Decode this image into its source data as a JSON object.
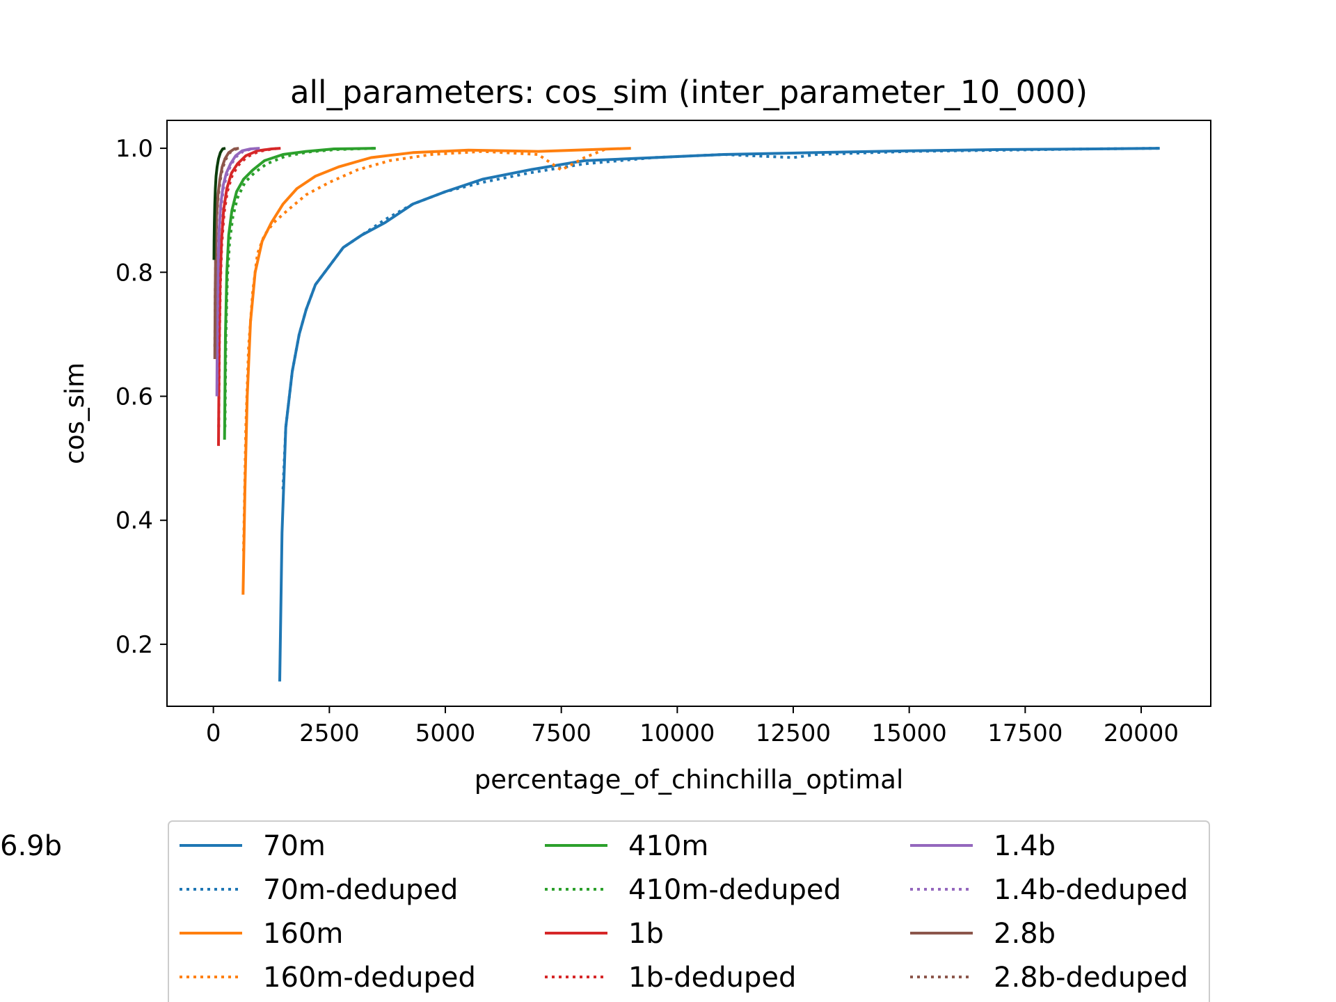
{
  "chart_data": {
    "type": "line",
    "title": "all_parameters: cos_sim (inter_parameter_10_000)",
    "xlabel": "percentage_of_chinchilla_optimal",
    "ylabel": "cos_sim",
    "xlim": [
      -1000,
      21500
    ],
    "ylim": [
      0.1,
      1.045
    ],
    "xticks": [
      0,
      2500,
      5000,
      7500,
      10000,
      12500,
      15000,
      17500,
      20000
    ],
    "yticks": [
      0.2,
      0.4,
      0.6,
      0.8,
      1.0
    ],
    "grid": false,
    "legend_position": "bottom-outside",
    "series": [
      {
        "name": "70m",
        "color": "#1f77b4",
        "style": "solid",
        "x": [
          1430,
          1480,
          1560,
          1700,
          1850,
          2000,
          2200,
          2500,
          2800,
          3200,
          3700,
          4300,
          5000,
          5800,
          6800,
          8000,
          9500,
          11000,
          13000,
          15000,
          17000,
          19000,
          20400
        ],
        "y": [
          0.14,
          0.38,
          0.55,
          0.64,
          0.7,
          0.74,
          0.78,
          0.81,
          0.84,
          0.86,
          0.88,
          0.91,
          0.93,
          0.95,
          0.965,
          0.98,
          0.985,
          0.99,
          0.993,
          0.996,
          0.998,
          0.999,
          1.0
        ]
      },
      {
        "name": "70m-deduped",
        "color": "#1f77b4",
        "style": "dotted",
        "x": [
          1500,
          1560,
          1700,
          1850,
          2000,
          2200,
          2500,
          2800,
          3200,
          3700,
          4300,
          5000,
          5800,
          6800,
          8000,
          9500,
          11000,
          12500,
          13000,
          15000,
          17000,
          19000,
          20400
        ],
        "y": [
          0.45,
          0.55,
          0.64,
          0.7,
          0.74,
          0.78,
          0.81,
          0.84,
          0.86,
          0.885,
          0.91,
          0.93,
          0.945,
          0.96,
          0.975,
          0.985,
          0.99,
          0.985,
          0.99,
          0.995,
          0.997,
          0.999,
          1.0
        ]
      },
      {
        "name": "160m",
        "color": "#ff7f0e",
        "style": "solid",
        "x": [
          640,
          680,
          730,
          800,
          900,
          1050,
          1250,
          1500,
          1800,
          2200,
          2700,
          3400,
          4300,
          5500,
          7000,
          9000
        ],
        "y": [
          0.28,
          0.45,
          0.6,
          0.72,
          0.8,
          0.85,
          0.88,
          0.91,
          0.935,
          0.955,
          0.97,
          0.985,
          0.993,
          0.997,
          0.995,
          1.0
        ]
      },
      {
        "name": "160m-deduped",
        "color": "#ff7f0e",
        "style": "dotted",
        "x": [
          650,
          700,
          760,
          850,
          950,
          1100,
          1300,
          1600,
          2000,
          2500,
          3100,
          3800,
          4700,
          5800,
          7000,
          7500,
          8000,
          8500
        ],
        "y": [
          0.35,
          0.55,
          0.68,
          0.77,
          0.83,
          0.86,
          0.88,
          0.9,
          0.925,
          0.945,
          0.965,
          0.98,
          0.99,
          0.995,
          0.99,
          0.965,
          0.985,
          1.0
        ]
      },
      {
        "name": "410m",
        "color": "#2ca02c",
        "style": "solid",
        "x": [
          240,
          260,
          290,
          330,
          400,
          500,
          650,
          850,
          1100,
          1500,
          2000,
          2600,
          3500
        ],
        "y": [
          0.53,
          0.7,
          0.8,
          0.86,
          0.9,
          0.93,
          0.95,
          0.965,
          0.98,
          0.99,
          0.995,
          0.999,
          1.0
        ]
      },
      {
        "name": "410m-deduped",
        "color": "#2ca02c",
        "style": "dotted",
        "x": [
          250,
          270,
          300,
          350,
          420,
          520,
          680,
          880,
          1150,
          1550,
          2050,
          2650,
          3500
        ],
        "y": [
          0.55,
          0.7,
          0.79,
          0.85,
          0.89,
          0.92,
          0.945,
          0.96,
          0.975,
          0.987,
          0.994,
          0.998,
          1.0
        ]
      },
      {
        "name": "1b",
        "color": "#d62728",
        "style": "solid",
        "x": [
          110,
          125,
          145,
          175,
          220,
          290,
          390,
          520,
          700,
          950,
          1250,
          1450
        ],
        "y": [
          0.52,
          0.68,
          0.78,
          0.85,
          0.9,
          0.935,
          0.96,
          0.975,
          0.988,
          0.996,
          0.999,
          1.0
        ]
      },
      {
        "name": "1b-deduped",
        "color": "#d62728",
        "style": "dotted",
        "x": [
          115,
          130,
          150,
          180,
          230,
          300,
          400,
          530,
          720,
          980,
          1280,
          1450
        ],
        "y": [
          0.55,
          0.69,
          0.78,
          0.845,
          0.895,
          0.93,
          0.955,
          0.972,
          0.986,
          0.995,
          0.999,
          1.0
        ]
      },
      {
        "name": "1.4b",
        "color": "#9467bd",
        "style": "solid",
        "x": [
          75,
          85,
          100,
          125,
          160,
          210,
          280,
          370,
          480,
          620,
          800,
          1000
        ],
        "y": [
          0.6,
          0.72,
          0.81,
          0.87,
          0.91,
          0.94,
          0.96,
          0.975,
          0.988,
          0.996,
          0.999,
          1.0
        ]
      },
      {
        "name": "1.4b-deduped",
        "color": "#9467bd",
        "style": "dotted",
        "x": [
          80,
          90,
          105,
          130,
          165,
          215,
          290,
          380,
          500,
          640,
          820,
          1000
        ],
        "y": [
          0.62,
          0.73,
          0.815,
          0.87,
          0.905,
          0.935,
          0.957,
          0.974,
          0.987,
          0.995,
          0.999,
          1.0
        ]
      },
      {
        "name": "2.8b",
        "color": "#8c564b",
        "style": "solid",
        "x": [
          30,
          38,
          50,
          70,
          100,
          140,
          190,
          250,
          330,
          450,
          550
        ],
        "y": [
          0.66,
          0.76,
          0.84,
          0.89,
          0.925,
          0.95,
          0.97,
          0.983,
          0.993,
          0.999,
          1.0
        ]
      },
      {
        "name": "2.8b-deduped",
        "color": "#8c564b",
        "style": "dotted",
        "x": [
          32,
          40,
          53,
          73,
          105,
          145,
          195,
          260,
          340,
          460,
          550
        ],
        "y": [
          0.68,
          0.77,
          0.845,
          0.89,
          0.922,
          0.947,
          0.967,
          0.981,
          0.992,
          0.998,
          1.0
        ]
      },
      {
        "name": "6.9b",
        "color": "#0b3d0b",
        "style": "solid",
        "x": [
          12,
          16,
          22,
          30,
          42,
          58,
          80,
          110,
          150,
          200,
          260
        ],
        "y": [
          0.82,
          0.85,
          0.88,
          0.91,
          0.935,
          0.955,
          0.97,
          0.983,
          0.993,
          0.999,
          1.0
        ]
      }
    ]
  }
}
